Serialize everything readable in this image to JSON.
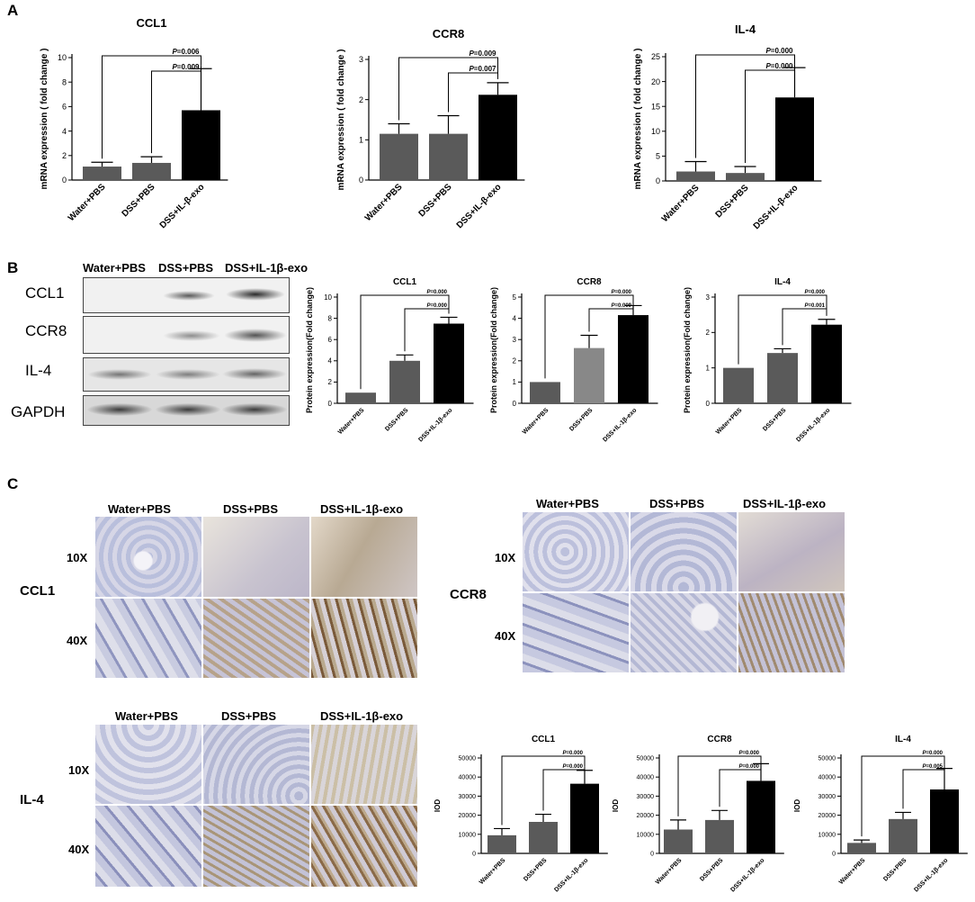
{
  "panels": {
    "a": "A",
    "b": "B",
    "c": "C"
  },
  "blot": {
    "headers": [
      "Water+PBS",
      "DSS+PBS",
      "DSS+IL-1β-exo"
    ],
    "rows": [
      "CCL1",
      "CCR8",
      "IL-4",
      "GAPDH"
    ]
  },
  "ihc": {
    "columns": [
      "Water+PBS",
      "DSS+PBS",
      "DSS+IL-1β-exo"
    ],
    "magnifications": [
      "10X",
      "40X"
    ],
    "markers": [
      "CCL1",
      "CCR8",
      "IL-4"
    ]
  },
  "chart_data": [
    {
      "id": "a-ccl1",
      "type": "bar",
      "title": "CCL1",
      "ylabel": "mRNA expression ( fold change )",
      "categories": [
        "Water+PBS",
        "DSS+PBS",
        "DSS+IL-β-exo"
      ],
      "values": [
        1.1,
        1.4,
        5.7
      ],
      "errors": [
        0.35,
        0.5,
        3.4
      ],
      "colors": [
        "#5a5a5a",
        "#5a5a5a",
        "#000000"
      ],
      "ylim": [
        0,
        10
      ],
      "yticks": [
        0,
        2,
        4,
        6,
        8,
        10
      ],
      "tick_labels": [
        "0",
        "2",
        "4",
        "6",
        "8",
        "10"
      ],
      "sig": [
        {
          "from": 0,
          "to": 2,
          "label_p": "P",
          "label_v": "=0.006"
        },
        {
          "from": 1,
          "to": 2,
          "label_p": "P",
          "label_v": "=0.009"
        }
      ]
    },
    {
      "id": "a-ccr8",
      "type": "bar",
      "title": "CCR8",
      "ylabel": "mRNA expression ( fold change )",
      "categories": [
        "Water+PBS",
        "DSS+PBS",
        "DSS+IL-β-exo"
      ],
      "values": [
        1.15,
        1.15,
        2.12
      ],
      "errors": [
        0.25,
        0.45,
        0.3
      ],
      "colors": [
        "#5a5a5a",
        "#5a5a5a",
        "#000000"
      ],
      "ylim": [
        0,
        3
      ],
      "yticks": [
        0,
        1,
        2,
        3
      ],
      "tick_labels": [
        "0",
        "1",
        "2",
        "3"
      ],
      "sig": [
        {
          "from": 0,
          "to": 2,
          "label_p": "P",
          "label_v": "=0.009"
        },
        {
          "from": 1,
          "to": 2,
          "label_p": "P",
          "label_v": "=0.007"
        }
      ]
    },
    {
      "id": "a-il4",
      "type": "bar",
      "title": "IL-4",
      "ylabel": "mRNA expression ( fold change )",
      "categories": [
        "Water+PBS",
        "DSS+PBS",
        "DSS+IL-β-exo"
      ],
      "values": [
        1.9,
        1.6,
        16.8
      ],
      "errors": [
        2.0,
        1.3,
        6.0
      ],
      "colors": [
        "#5a5a5a",
        "#5a5a5a",
        "#000000"
      ],
      "ylim": [
        0,
        25
      ],
      "yticks": [
        0,
        5,
        10,
        15,
        20,
        25
      ],
      "tick_labels": [
        "0",
        "5",
        "10",
        "15",
        "20",
        "25"
      ],
      "sig": [
        {
          "from": 0,
          "to": 2,
          "label_p": "P",
          "label_v": "=0.000"
        },
        {
          "from": 1,
          "to": 2,
          "label_p": "P",
          "label_v": "=0.000"
        }
      ]
    },
    {
      "id": "b-ccl1",
      "type": "bar",
      "title": "CCL1",
      "ylabel": "Protein expression(Fold change)",
      "categories": [
        "Water+PBS",
        "DSS+PBS",
        "DSS+IL-1β-exo"
      ],
      "values": [
        1.0,
        4.0,
        7.5
      ],
      "errors": [
        0,
        0.55,
        0.6
      ],
      "colors": [
        "#5a5a5a",
        "#5a5a5a",
        "#000000"
      ],
      "ylim": [
        0,
        10
      ],
      "yticks": [
        0,
        2,
        4,
        6,
        8,
        10
      ],
      "tick_labels": [
        "0",
        "2",
        "4",
        "6",
        "8",
        "10"
      ],
      "sig": [
        {
          "from": 0,
          "to": 2,
          "label_p": "P",
          "label_v": "=0.000"
        },
        {
          "from": 1,
          "to": 2,
          "label_p": "P",
          "label_v": "=0.000"
        }
      ]
    },
    {
      "id": "b-ccr8",
      "type": "bar",
      "title": "CCR8",
      "ylabel": "Protein expression(Fold change)",
      "categories": [
        "Water+PBS",
        "DSS+PBS",
        "DSS+IL-1β-exo"
      ],
      "values": [
        1.0,
        2.6,
        4.15
      ],
      "errors": [
        0,
        0.6,
        0.45
      ],
      "colors": [
        "#5a5a5a",
        "#888888",
        "#000000"
      ],
      "ylim": [
        0,
        5
      ],
      "yticks": [
        0,
        1,
        2,
        3,
        4,
        5
      ],
      "tick_labels": [
        "0",
        "1",
        "2",
        "3",
        "4",
        "5"
      ],
      "sig": [
        {
          "from": 0,
          "to": 2,
          "label_p": "P",
          "label_v": "=0.000"
        },
        {
          "from": 1,
          "to": 2,
          "label_p": "P",
          "label_v": "=0.009"
        }
      ]
    },
    {
      "id": "b-il4",
      "type": "bar",
      "title": "IL-4",
      "ylabel": "Protein expression(Fold change)",
      "categories": [
        "Water+PBS",
        "DSS+PBS",
        "DSS+IL-1β-exo"
      ],
      "values": [
        1.0,
        1.42,
        2.22
      ],
      "errors": [
        0,
        0.12,
        0.15
      ],
      "colors": [
        "#5a5a5a",
        "#5a5a5a",
        "#000000"
      ],
      "ylim": [
        0,
        3
      ],
      "yticks": [
        0,
        1,
        2,
        3
      ],
      "tick_labels": [
        "0",
        "1",
        "2",
        "3"
      ],
      "sig": [
        {
          "from": 0,
          "to": 2,
          "label_p": "P",
          "label_v": "=0.000"
        },
        {
          "from": 1,
          "to": 2,
          "label_p": "P",
          "label_v": "=0.001"
        }
      ]
    },
    {
      "id": "c-ccl1",
      "type": "bar",
      "title": "CCL1",
      "ylabel": "IOD",
      "categories": [
        "Water+PBS",
        "DSS+PBS",
        "DSS+IL-1β-exo"
      ],
      "values": [
        9500,
        16500,
        36500
      ],
      "errors": [
        3500,
        4000,
        7000
      ],
      "colors": [
        "#5a5a5a",
        "#5a5a5a",
        "#000000"
      ],
      "ylim": [
        0,
        50000
      ],
      "yticks": [
        0,
        10000,
        20000,
        30000,
        40000,
        50000
      ],
      "tick_labels": [
        "0",
        "10000",
        "20000",
        "30000",
        "40000",
        "50000"
      ],
      "sig": [
        {
          "from": 0,
          "to": 2,
          "label_p": "P",
          "label_v": "=0.000"
        },
        {
          "from": 1,
          "to": 2,
          "label_p": "P",
          "label_v": "=0.000"
        }
      ]
    },
    {
      "id": "c-ccr8",
      "type": "bar",
      "title": "CCR8",
      "ylabel": "IOD",
      "categories": [
        "Water+PBS",
        "DSS+PBS",
        "DSS+IL-1β-exo"
      ],
      "values": [
        12500,
        17500,
        38000
      ],
      "errors": [
        5000,
        5000,
        9000
      ],
      "colors": [
        "#5a5a5a",
        "#5a5a5a",
        "#000000"
      ],
      "ylim": [
        0,
        50000
      ],
      "yticks": [
        0,
        10000,
        20000,
        30000,
        40000,
        50000
      ],
      "tick_labels": [
        "0",
        "10000",
        "20000",
        "30000",
        "40000",
        "50000"
      ],
      "sig": [
        {
          "from": 0,
          "to": 2,
          "label_p": "P",
          "label_v": "=0.000"
        },
        {
          "from": 1,
          "to": 2,
          "label_p": "P",
          "label_v": "=0.000"
        }
      ]
    },
    {
      "id": "c-il4",
      "type": "bar",
      "title": "IL-4",
      "ylabel": "IOD",
      "categories": [
        "Water+PBS",
        "DSS+PBS",
        "DSS+IL-1β-exo"
      ],
      "values": [
        5500,
        18000,
        33500
      ],
      "errors": [
        1500,
        3500,
        11000
      ],
      "colors": [
        "#5a5a5a",
        "#5a5a5a",
        "#000000"
      ],
      "ylim": [
        0,
        50000
      ],
      "yticks": [
        0,
        10000,
        20000,
        30000,
        40000,
        50000
      ],
      "tick_labels": [
        "0",
        "10000",
        "20000",
        "30000",
        "40000",
        "50000"
      ],
      "sig": [
        {
          "from": 0,
          "to": 2,
          "label_p": "P",
          "label_v": "=0.000"
        },
        {
          "from": 1,
          "to": 2,
          "label_p": "P",
          "label_v": "=0.005"
        }
      ]
    }
  ]
}
